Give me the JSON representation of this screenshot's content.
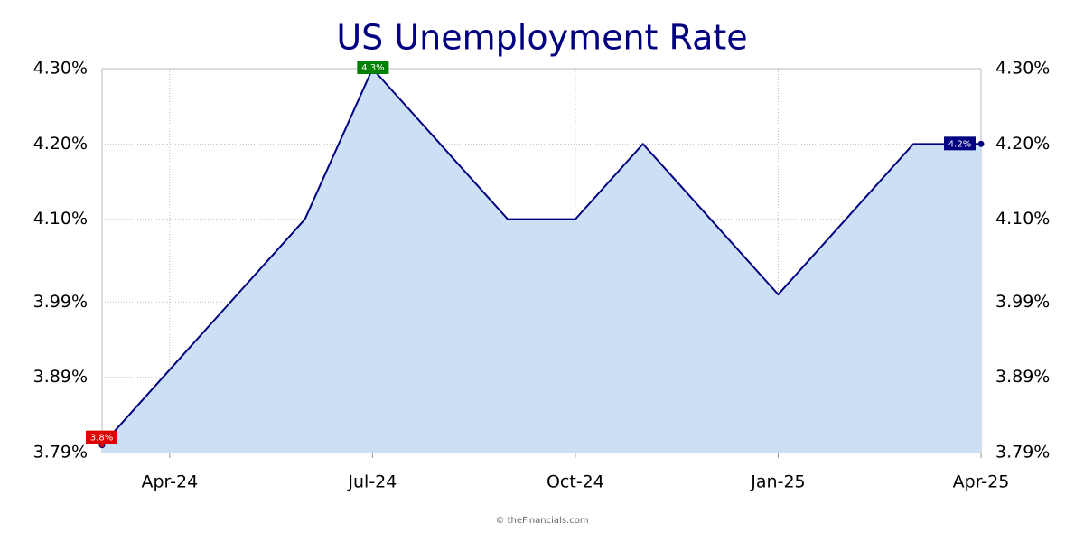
{
  "chart_data": {
    "type": "area",
    "title": "US Unemployment Rate",
    "categories": [
      null,
      "Apr-24",
      null,
      null,
      "Jul-24",
      null,
      null,
      "Oct-24",
      null,
      null,
      "Jan-25",
      null,
      null,
      "Apr-25"
    ],
    "values": [
      3.8,
      3.9,
      4.0,
      4.1,
      4.3,
      4.2,
      4.1,
      4.1,
      4.2,
      4.1,
      4.0,
      4.1,
      4.2,
      4.2
    ],
    "value_labels": [
      "3.8%",
      null,
      null,
      null,
      "4.3%",
      null,
      null,
      null,
      null,
      null,
      null,
      null,
      null,
      "4.2%"
    ],
    "label_colors": [
      "#e00000",
      null,
      null,
      null,
      "#008000",
      null,
      null,
      null,
      null,
      null,
      null,
      null,
      null,
      "#000080"
    ],
    "color": "#000080",
    "fill": "#cce0f5",
    "ylim": [
      3.79,
      4.3
    ],
    "yticks": [
      {
        "value": 3.79,
        "label": "3.79%"
      },
      {
        "value": 3.89,
        "label": "3.89%"
      },
      {
        "value": 3.99,
        "label": "3.99%"
      },
      {
        "value": 4.1,
        "label": "4.10%"
      },
      {
        "value": 4.2,
        "label": "4.20%"
      },
      {
        "value": 4.3,
        "label": "4.30%"
      }
    ],
    "grid": true,
    "source": "© theFinancials.com"
  }
}
